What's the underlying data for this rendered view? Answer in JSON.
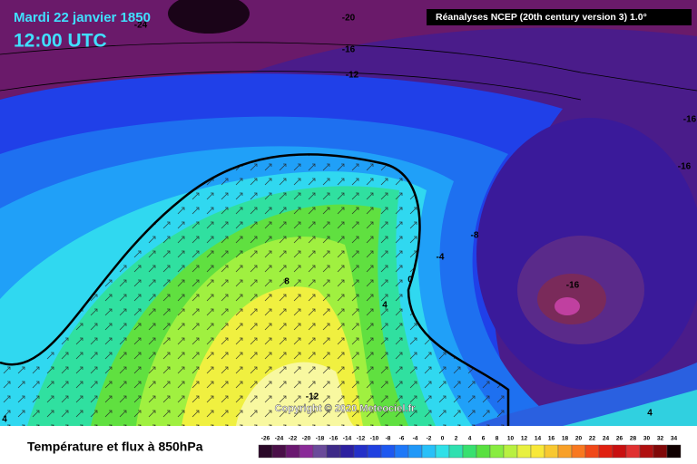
{
  "header": {
    "date": "Mardi 22 janvier 1850",
    "time": "12:00 UTC",
    "source": "Réanalyses NCEP (20th century version 3) 1.0°"
  },
  "map": {
    "copyright": "Copyright © 2020 Meteociel.fr",
    "contour_labels": [
      -24,
      -20,
      -16,
      -12,
      -16,
      -16,
      -8,
      -4,
      0,
      4,
      8,
      -16,
      -12,
      4,
      4
    ]
  },
  "footer": {
    "title": "Température et flux à 850hPa"
  },
  "legend": {
    "ticks": [
      -26,
      -24,
      -22,
      -20,
      -18,
      -16,
      -14,
      -12,
      -10,
      -8,
      -6,
      -4,
      -2,
      0,
      2,
      4,
      6,
      8,
      10,
      12,
      14,
      16,
      18,
      20,
      22,
      24,
      26,
      28,
      30,
      32,
      34
    ],
    "colors": [
      "#2a0828",
      "#4a0f48",
      "#6a1870",
      "#8a2a98",
      "#6a4a9a",
      "#3e2a88",
      "#2c20a0",
      "#2430c8",
      "#2040e0",
      "#1e58f0",
      "#1e78f8",
      "#2098f8",
      "#28c0f8",
      "#30e0e8",
      "#30e0b0",
      "#38e070",
      "#58e040",
      "#88ec40",
      "#b8f040",
      "#e8f040",
      "#f8e838",
      "#f8c830",
      "#f8a028",
      "#f87820",
      "#f04818",
      "#e02010",
      "#c81010",
      "#e03030",
      "#b01010",
      "#800808",
      "#100000"
    ]
  }
}
